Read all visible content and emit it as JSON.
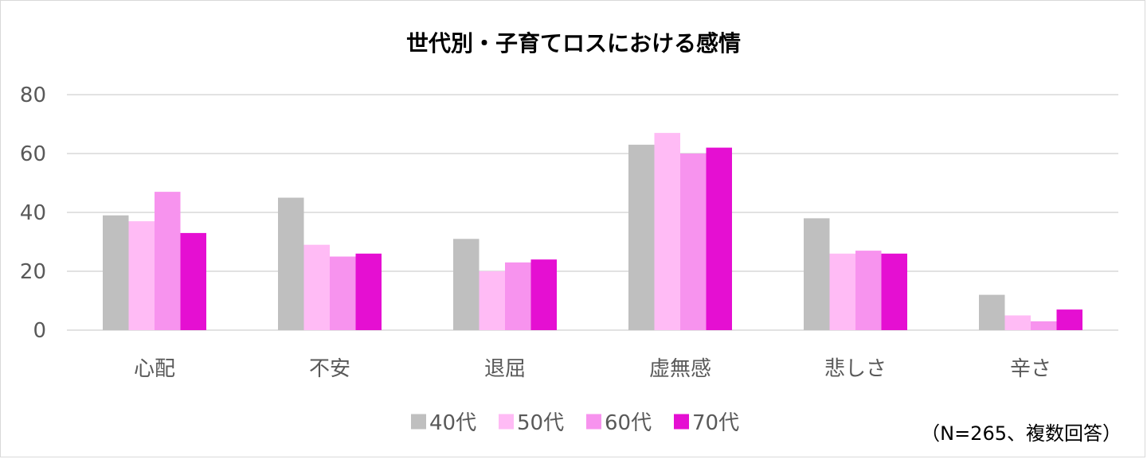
{
  "chart_data": {
    "type": "bar",
    "title": "世代別・子育てロスにおける感情",
    "categories": [
      "心配",
      "不安",
      "退屈",
      "虚無感",
      "悲しさ",
      "辛さ"
    ],
    "series": [
      {
        "name": "40代",
        "color": "#bfbfbf",
        "values": [
          39,
          45,
          31,
          63,
          38,
          12
        ]
      },
      {
        "name": "50代",
        "color": "#ffbbf5",
        "values": [
          37,
          29,
          20,
          67,
          26,
          5
        ]
      },
      {
        "name": "60代",
        "color": "#f793ee",
        "values": [
          47,
          25,
          23,
          60,
          27,
          3
        ]
      },
      {
        "name": "70代",
        "color": "#e50fd2",
        "values": [
          33,
          26,
          24,
          62,
          26,
          7
        ]
      }
    ],
    "ylim": [
      0,
      80
    ],
    "yticks": [
      "0",
      "20",
      "40",
      "60",
      "80"
    ],
    "grid": true,
    "legend_position": "bottom",
    "note": "（N=265、複数回答）"
  }
}
